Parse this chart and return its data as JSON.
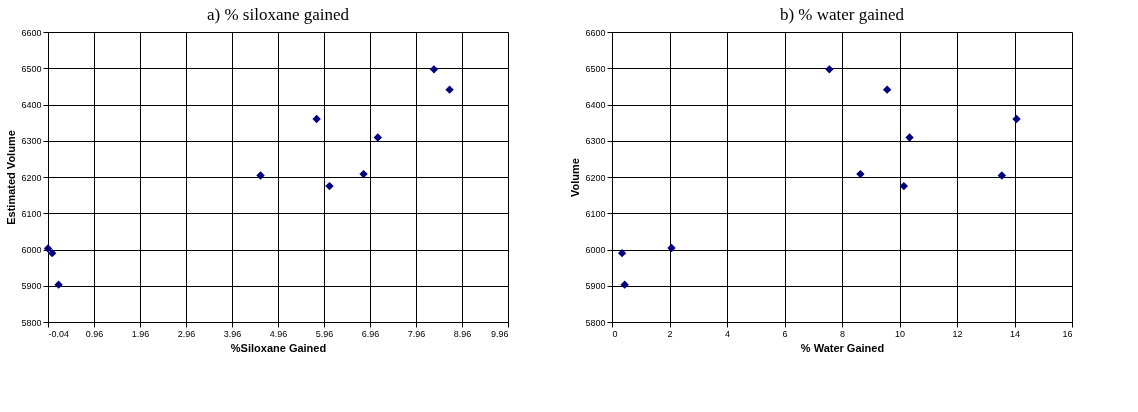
{
  "chart_data": [
    {
      "type": "scatter",
      "title": "a) % siloxane gained",
      "xlabel": "%Siloxane Gained",
      "ylabel": "Estimated Volume",
      "marker": "diamond",
      "grid": true,
      "x": [
        -0.04,
        0.05,
        0.19,
        4.58,
        5.8,
        6.08,
        6.82,
        7.13,
        8.35,
        8.69
      ],
      "series": [
        {
          "color": "#000080",
          "values": [
            6003,
            5990,
            5903,
            6204,
            6360,
            6175,
            6208,
            6309,
            6497,
            6441
          ]
        }
      ],
      "xlim": [
        -0.04,
        9.96
      ],
      "xticks": [
        -0.04,
        0.96,
        1.96,
        2.96,
        3.96,
        4.96,
        5.96,
        6.96,
        7.96,
        8.96,
        9.96
      ],
      "ylim": [
        5800,
        6600
      ],
      "yticks": [
        5800,
        5900,
        6000,
        6100,
        6200,
        6300,
        6400,
        6500,
        6600
      ]
    },
    {
      "type": "scatter",
      "title": "b) % water gained",
      "xlabel": "% Water Gained",
      "ylabel": "Volume",
      "marker": "diamond",
      "grid": true,
      "x": [
        0.35,
        0.44,
        2.07,
        7.56,
        8.64,
        9.57,
        10.15,
        10.35,
        13.56,
        14.07
      ],
      "series": [
        {
          "color": "#000080",
          "values": [
            5990,
            5903,
            6004,
            6497,
            6208,
            6441,
            6175,
            6309,
            6204,
            6360
          ]
        }
      ],
      "xlim": [
        0,
        16
      ],
      "xticks": [
        0,
        2,
        4,
        6,
        8,
        10,
        12,
        14,
        16
      ],
      "ylim": [
        5800,
        6600
      ],
      "yticks": [
        5800,
        5900,
        6000,
        6100,
        6200,
        6300,
        6400,
        6500,
        6600
      ]
    }
  ]
}
